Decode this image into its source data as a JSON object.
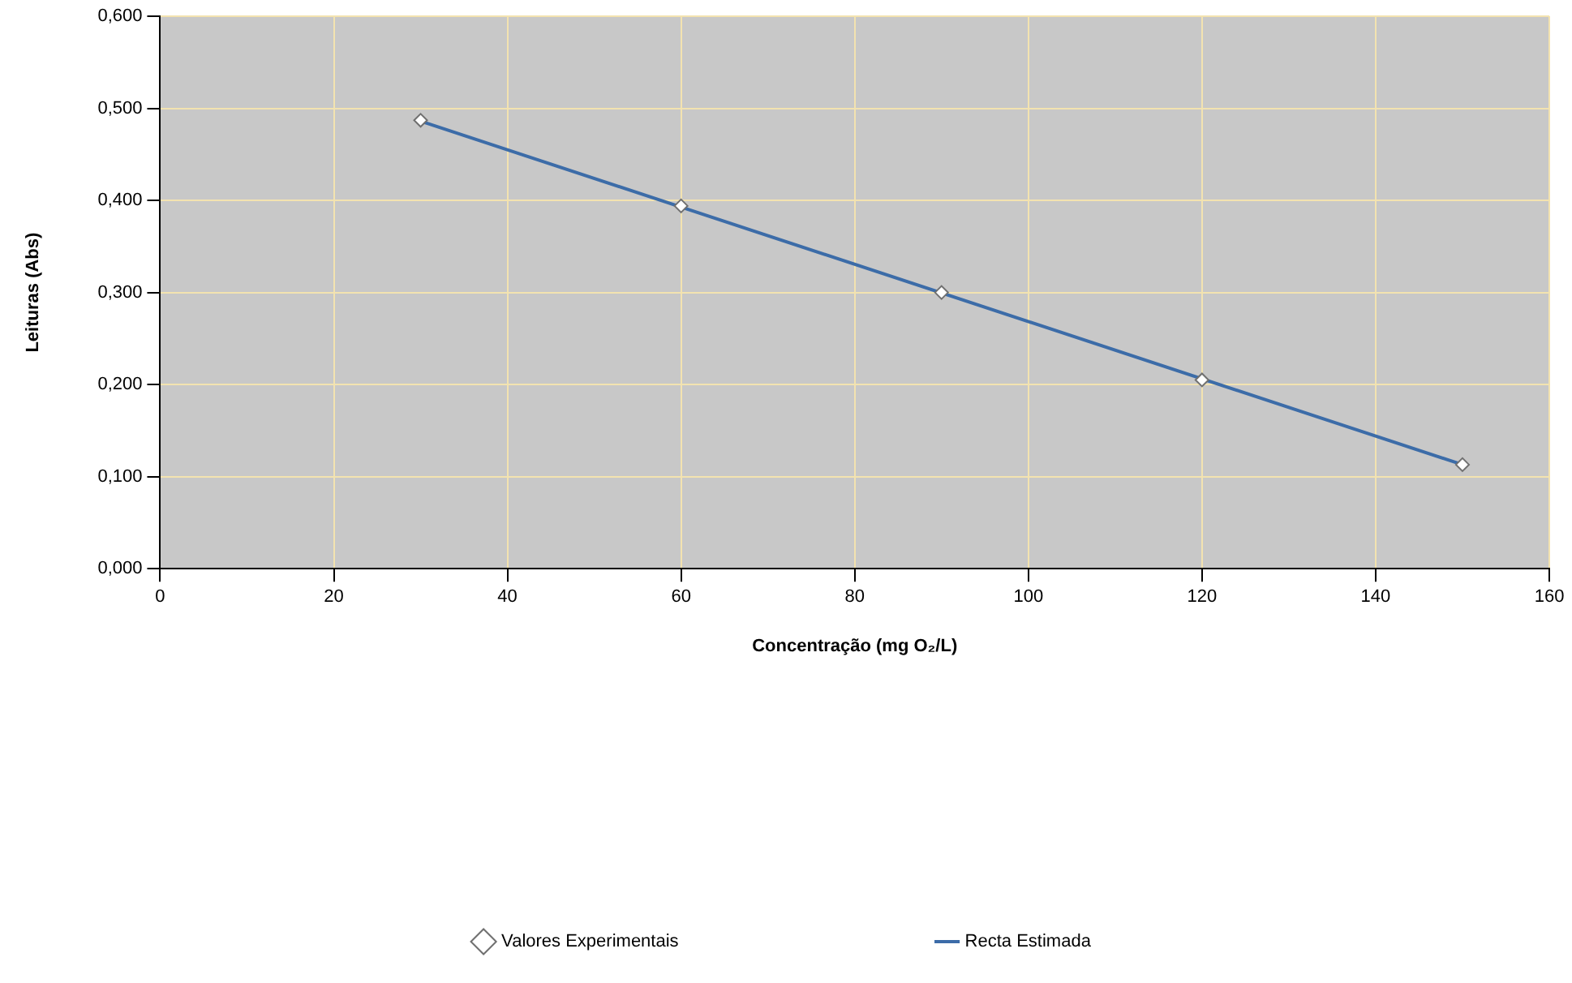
{
  "chart_data": {
    "type": "scatter",
    "xlabel": "Concentração (mg O₂/L)",
    "ylabel": "Leituras (Abs)",
    "xlim": [
      0,
      160
    ],
    "xticks": [
      0,
      20,
      40,
      60,
      80,
      100,
      120,
      140,
      160
    ],
    "ylim": [
      0,
      0.6
    ],
    "yticks": [
      {
        "value": 0,
        "label": "0,000"
      },
      {
        "value": 0.1,
        "label": "0,100"
      },
      {
        "value": 0.2,
        "label": "0,200"
      },
      {
        "value": 0.3,
        "label": "0,300"
      },
      {
        "value": 0.4,
        "label": "0,400"
      },
      {
        "value": 0.5,
        "label": "0,500"
      },
      {
        "value": 0.6,
        "label": "0,600"
      }
    ],
    "grid": true,
    "legend": "bottom",
    "series": [
      {
        "name": "Valores Experimentais",
        "marker": "diamond",
        "color": "#707070",
        "x": [
          30,
          60,
          90,
          120,
          150
        ],
        "values": [
          0.487,
          0.394,
          0.3,
          0.205,
          0.113
        ]
      },
      {
        "name": "Recta Estimada",
        "type": "line",
        "marker": "none",
        "color": "#3c6ca8",
        "x": [
          30,
          150
        ],
        "values": [
          0.486,
          0.113
        ]
      }
    ]
  }
}
